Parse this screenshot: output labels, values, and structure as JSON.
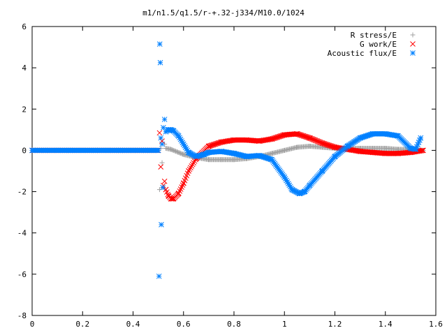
{
  "chart_data": {
    "type": "scatter",
    "title": "m1/n1.5/q1.5/r-+.32-j334/M10.0/1024",
    "xlim": [
      0,
      1.6
    ],
    "ylim": [
      -8,
      6
    ],
    "xticks": [
      "0",
      "0.2",
      "0.4",
      "0.6",
      "0.8",
      "1",
      "1.2",
      "1.4",
      "1.6"
    ],
    "yticks": [
      "6",
      "4",
      "2",
      "0",
      "-2",
      "-4",
      "-6",
      "-8"
    ],
    "xtick_values": [
      0,
      0.2,
      0.4,
      0.6,
      0.8,
      1.0,
      1.2,
      1.4,
      1.6
    ],
    "ytick_values": [
      6,
      4,
      2,
      0,
      -2,
      -4,
      -6,
      -8
    ],
    "grid": false,
    "legend_position": "top-right",
    "series": [
      {
        "name": "R stress/E",
        "color": "#a0a0a0",
        "marker": "plus",
        "x": [
          0.0,
          0.05,
          0.1,
          0.15,
          0.2,
          0.25,
          0.3,
          0.35,
          0.4,
          0.45,
          0.5,
          0.505,
          0.51,
          0.515,
          0.52,
          0.525,
          0.53,
          0.55,
          0.6,
          0.65,
          0.7,
          0.75,
          0.8,
          0.85,
          0.9,
          0.95,
          1.0,
          1.05,
          1.1,
          1.15,
          1.2,
          1.25,
          1.3,
          1.35,
          1.4,
          1.45,
          1.5,
          1.55
        ],
        "y": [
          0,
          0,
          0,
          0,
          0,
          0,
          0,
          0,
          0,
          0,
          0,
          -1.9,
          0.1,
          -0.6,
          -1.8,
          0.3,
          0.1,
          0.05,
          -0.2,
          -0.35,
          -0.45,
          -0.45,
          -0.45,
          -0.4,
          -0.3,
          -0.15,
          0.0,
          0.15,
          0.2,
          0.15,
          0.1,
          0.1,
          0.1,
          0.1,
          0.1,
          0.05,
          0.05,
          0.0
        ]
      },
      {
        "name": "G work/E",
        "color": "#ff0000",
        "marker": "x",
        "x": [
          0.0,
          0.05,
          0.1,
          0.15,
          0.2,
          0.25,
          0.3,
          0.35,
          0.4,
          0.45,
          0.5,
          0.505,
          0.51,
          0.515,
          0.52,
          0.525,
          0.53,
          0.54,
          0.55,
          0.56,
          0.58,
          0.6,
          0.62,
          0.65,
          0.7,
          0.75,
          0.8,
          0.85,
          0.9,
          0.95,
          1.0,
          1.05,
          1.1,
          1.15,
          1.2,
          1.25,
          1.3,
          1.35,
          1.4,
          1.45,
          1.5,
          1.55
        ],
        "y": [
          0,
          0,
          0,
          0,
          0,
          0,
          0,
          0,
          0,
          0,
          0,
          0.85,
          -0.8,
          0.45,
          -1.7,
          -1.5,
          -1.9,
          -2.2,
          -2.35,
          -2.35,
          -2.1,
          -1.6,
          -1.0,
          -0.4,
          0.2,
          0.4,
          0.5,
          0.5,
          0.45,
          0.55,
          0.75,
          0.8,
          0.6,
          0.35,
          0.15,
          0.05,
          -0.05,
          -0.1,
          -0.15,
          -0.15,
          -0.1,
          0.0
        ]
      },
      {
        "name": "Acoustic flux/E",
        "color": "#0080ff",
        "marker": "star",
        "x": [
          0.0,
          0.05,
          0.1,
          0.15,
          0.2,
          0.25,
          0.3,
          0.35,
          0.4,
          0.45,
          0.5,
          0.503,
          0.506,
          0.508,
          0.51,
          0.512,
          0.515,
          0.518,
          0.52,
          0.525,
          0.53,
          0.54,
          0.55,
          0.56,
          0.58,
          0.6,
          0.62,
          0.65,
          0.68,
          0.7,
          0.75,
          0.8,
          0.85,
          0.9,
          0.95,
          1.0,
          1.03,
          1.06,
          1.08,
          1.1,
          1.15,
          1.2,
          1.25,
          1.3,
          1.35,
          1.4,
          1.45,
          1.5,
          1.52,
          1.54
        ],
        "y": [
          0,
          0,
          0,
          0,
          0,
          0,
          0,
          0,
          0,
          0,
          0,
          -6.1,
          5.15,
          4.25,
          0.6,
          -3.6,
          0.3,
          -1.8,
          1.1,
          1.5,
          0.9,
          1.0,
          1.0,
          0.95,
          0.7,
          0.3,
          -0.1,
          -0.3,
          -0.2,
          -0.1,
          -0.05,
          -0.15,
          -0.3,
          -0.25,
          -0.45,
          -1.3,
          -1.9,
          -2.1,
          -2.0,
          -1.7,
          -1.0,
          -0.3,
          0.2,
          0.6,
          0.8,
          0.8,
          0.7,
          0.1,
          0.05,
          0.6
        ]
      }
    ]
  }
}
